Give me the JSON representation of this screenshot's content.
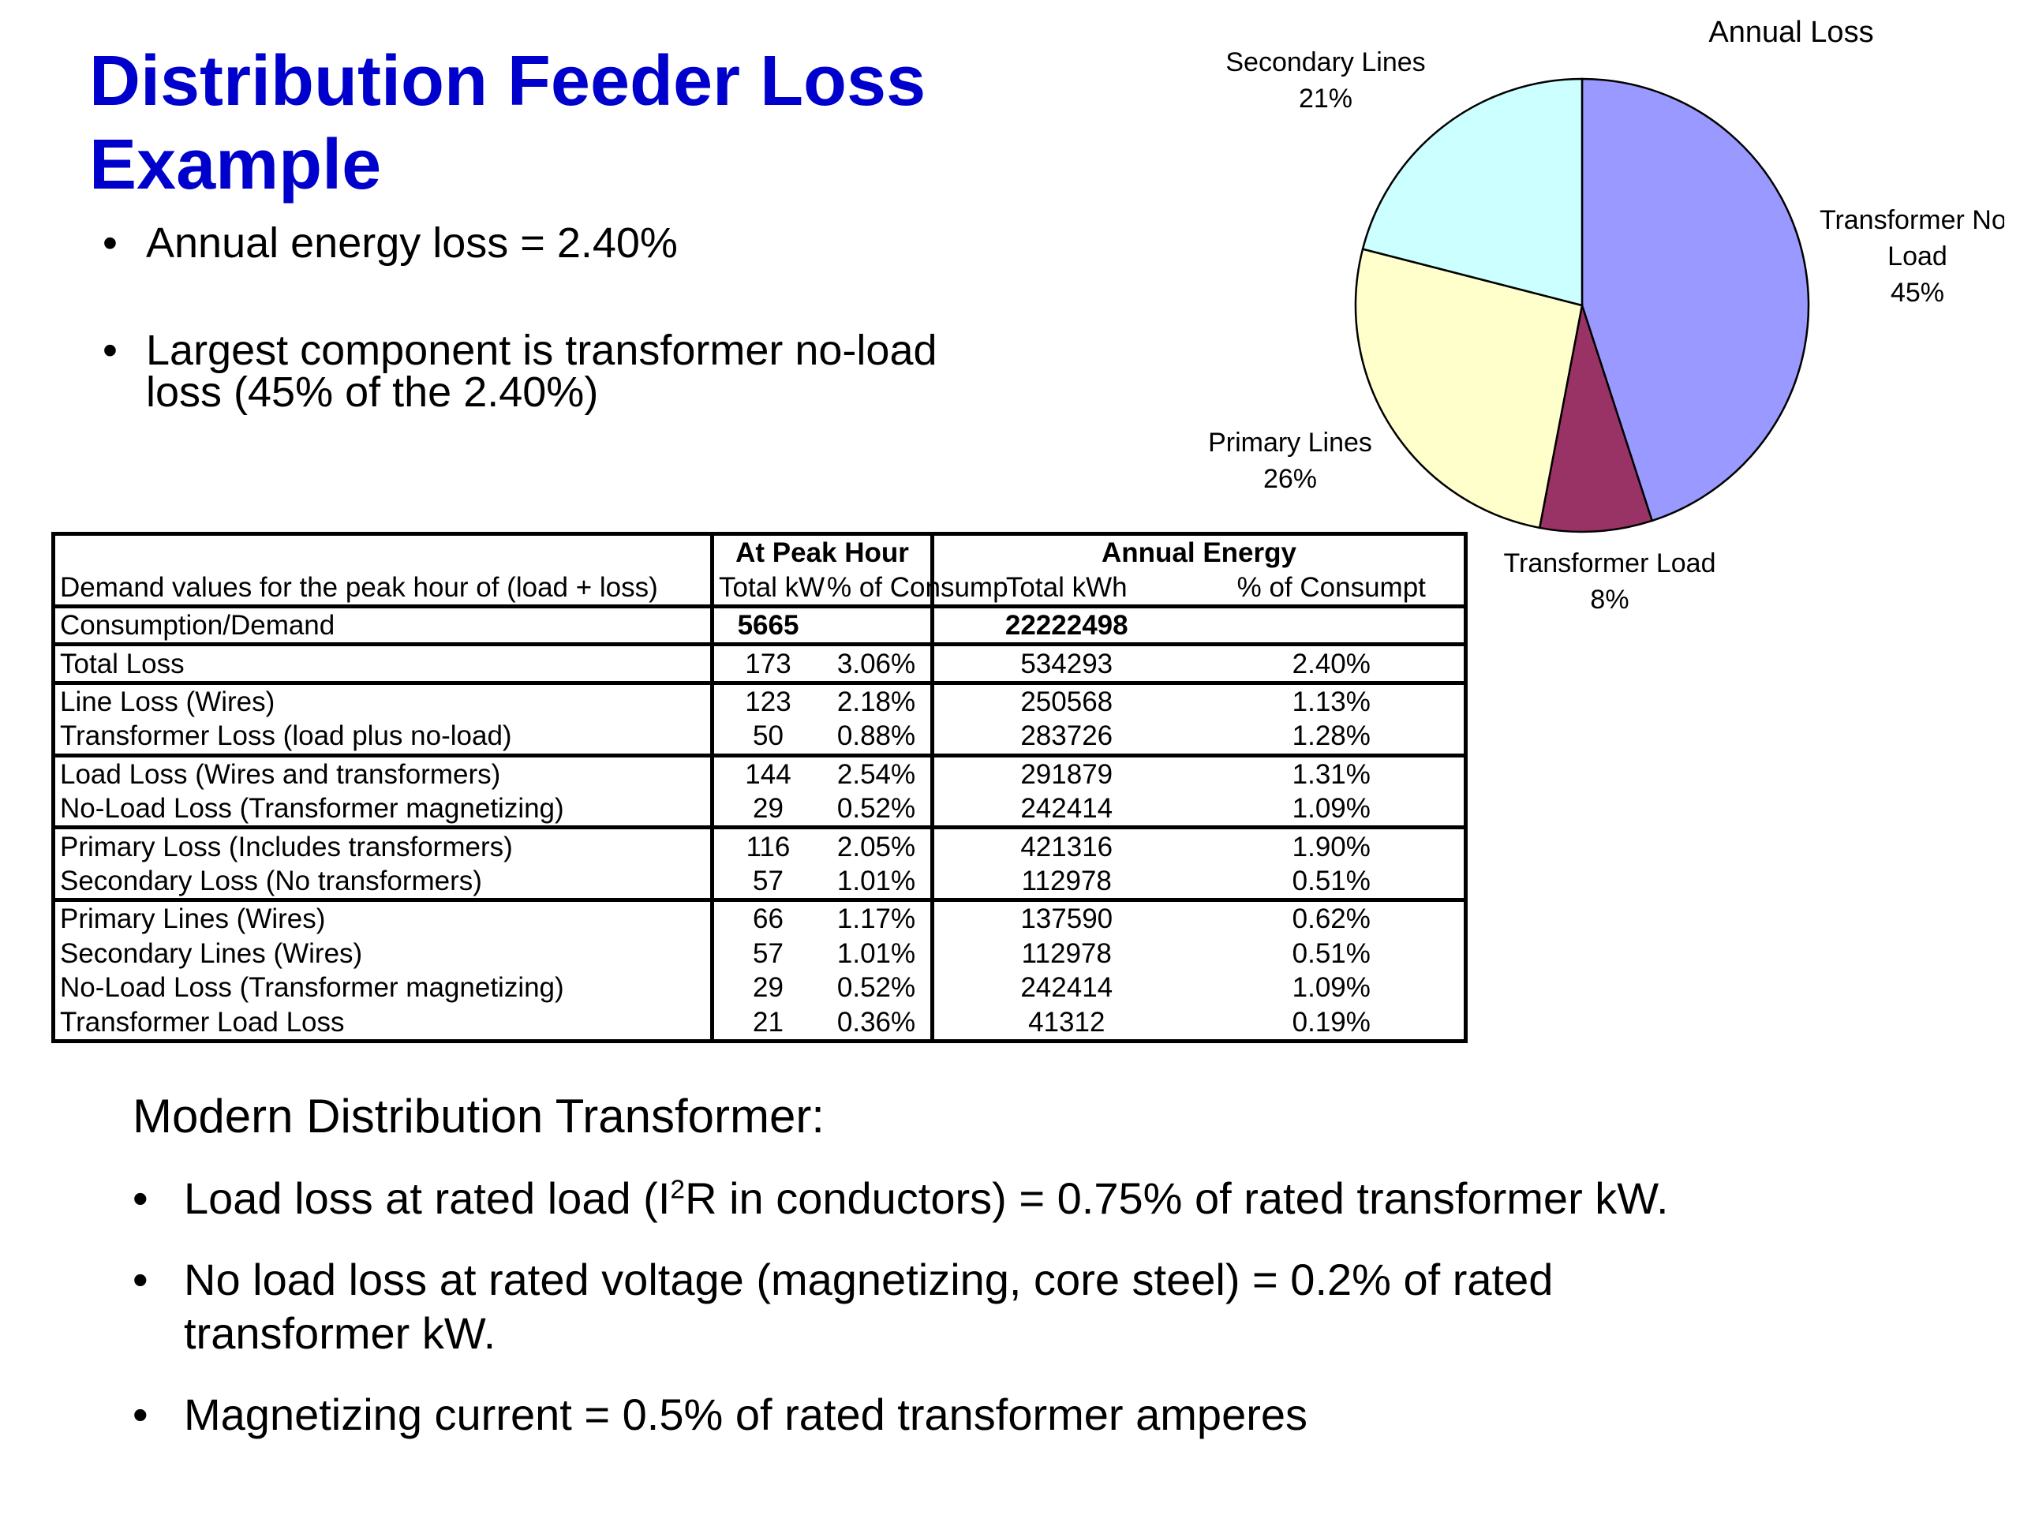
{
  "title": "Distribution Feeder Loss Example",
  "bullets": [
    "Annual energy loss = 2.40%",
    "Largest component is transformer no-load loss (45% of the 2.40%)"
  ],
  "bullet_glyph": "•",
  "chart_data": {
    "type": "pie",
    "title": "Annual Loss",
    "slices": [
      {
        "label": "Transformer No-Load",
        "value": 45,
        "display": "45%",
        "color": "#9999ff"
      },
      {
        "label": "Transformer Load",
        "value": 8,
        "display": "8%",
        "color": "#993366"
      },
      {
        "label": "Primary Lines",
        "value": 26,
        "display": "26%",
        "color": "#ffffcc"
      },
      {
        "label": "Secondary Lines",
        "value": 21,
        "display": "21%",
        "color": "#ccffff"
      }
    ]
  },
  "table": {
    "header_row_label": "Demand values for the peak hour of (load + loss)",
    "peak_group": "At Peak Hour",
    "annual_group": "Annual Energy",
    "col_total_kw": "Total kW",
    "col_pct_peak": "% of Consump",
    "col_total_kwh": "Total kWh",
    "col_pct_annual": "% of Consumpt",
    "rows": [
      {
        "label": "Consumption/Demand",
        "kw": "5665",
        "pct_peak": "",
        "kwh": "22222498",
        "pct_annual": ""
      },
      {
        "label": "Total Loss",
        "kw": "173",
        "pct_peak": "3.06%",
        "kwh": "534293",
        "pct_annual": "2.40%"
      },
      {
        "label": "Line Loss (Wires)",
        "kw": "123",
        "pct_peak": "2.18%",
        "kwh": "250568",
        "pct_annual": "1.13%"
      },
      {
        "label": "Transformer Loss (load plus no-load)",
        "kw": "50",
        "pct_peak": "0.88%",
        "kwh": "283726",
        "pct_annual": "1.28%"
      },
      {
        "label": "Load Loss (Wires and transformers)",
        "kw": "144",
        "pct_peak": "2.54%",
        "kwh": "291879",
        "pct_annual": "1.31%"
      },
      {
        "label": "No-Load Loss (Transformer magnetizing)",
        "kw": "29",
        "pct_peak": "0.52%",
        "kwh": "242414",
        "pct_annual": "1.09%"
      },
      {
        "label": "Primary Loss (Includes transformers)",
        "kw": "116",
        "pct_peak": "2.05%",
        "kwh": "421316",
        "pct_annual": "1.90%"
      },
      {
        "label": "Secondary Loss (No transformers)",
        "kw": "57",
        "pct_peak": "1.01%",
        "kwh": "112978",
        "pct_annual": "0.51%"
      },
      {
        "label": "Primary Lines (Wires)",
        "kw": "66",
        "pct_peak": "1.17%",
        "kwh": "137590",
        "pct_annual": "0.62%"
      },
      {
        "label": "Secondary Lines (Wires)",
        "kw": "57",
        "pct_peak": "1.01%",
        "kwh": "112978",
        "pct_annual": "0.51%"
      },
      {
        "label": "No-Load Loss (Transformer magnetizing)",
        "kw": "29",
        "pct_peak": "0.52%",
        "kwh": "242414",
        "pct_annual": "1.09%"
      },
      {
        "label": "Transformer Load Loss",
        "kw": "21",
        "pct_peak": "0.36%",
        "kwh": "41312",
        "pct_annual": "0.19%"
      }
    ]
  },
  "section2": {
    "title": "Modern Distribution Transformer:",
    "bullet1_pre": "Load loss at rated load (I",
    "bullet1_sup": "2",
    "bullet1_post": "R in conductors) = 0.75% of rated transformer kW.",
    "bullet2": "No load loss at rated voltage (magnetizing, core steel) = 0.2% of rated transformer kW.",
    "bullet3": "Magnetizing current = 0.5% of rated transformer amperes"
  }
}
